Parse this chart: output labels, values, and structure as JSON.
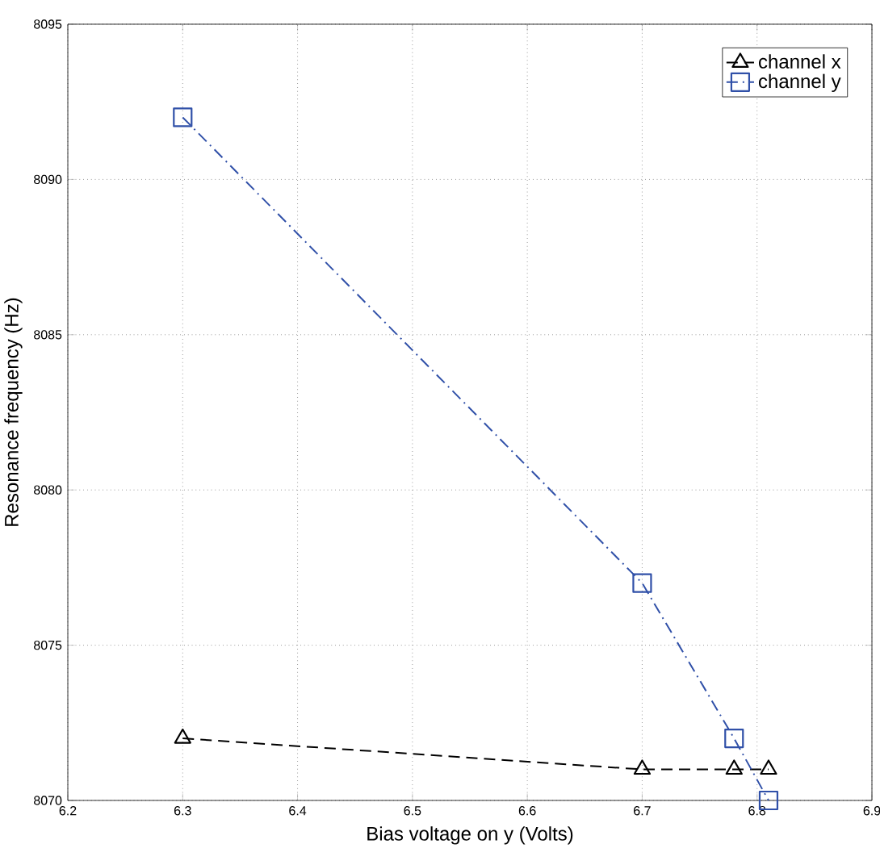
{
  "chart_data": {
    "type": "line",
    "xlabel": "Bias voltage on y (Volts)",
    "ylabel": "Resonance frequency (Hz)",
    "xlim": [
      6.2,
      6.9
    ],
    "xticks": [
      6.2,
      6.3,
      6.4,
      6.5,
      6.6,
      6.7,
      6.8,
      6.9
    ],
    "ylim": [
      8070,
      8095
    ],
    "yticks": [
      8070,
      8075,
      8080,
      8085,
      8090,
      8095
    ],
    "grid": true,
    "legend": "top right",
    "series": [
      {
        "name": "channel x",
        "color": "#000000",
        "marker": "triangle",
        "line_style": "dashed",
        "x": [
          6.3,
          6.7,
          6.78,
          6.81
        ],
        "values": [
          8072,
          8071,
          8071,
          8071
        ]
      },
      {
        "name": "channel y",
        "color": "#3050a8",
        "marker": "square",
        "line_style": "dashdot",
        "x": [
          6.3,
          6.7,
          6.78,
          6.81
        ],
        "values": [
          8092,
          8077,
          8072,
          8070
        ]
      }
    ]
  }
}
